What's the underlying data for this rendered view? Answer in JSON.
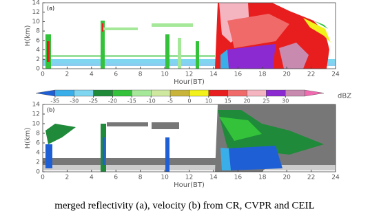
{
  "chart_data": [
    {
      "type": "time-height",
      "panel_label": "(a)",
      "xlabel": "Hour(BT)",
      "ylabel": "H(km)",
      "xlim": [
        0,
        24
      ],
      "xticks": [
        0,
        2,
        4,
        6,
        8,
        10,
        12,
        14,
        16,
        18,
        20,
        22,
        24
      ],
      "ylim": [
        0,
        14
      ],
      "yticks": [
        0,
        2,
        4,
        6,
        8,
        10,
        12,
        14
      ]
    },
    {
      "type": "colorbar",
      "unit": "dBZ",
      "ticks": [
        -35,
        -30,
        -25,
        -20,
        -15,
        -10,
        -5,
        0,
        10,
        15,
        20,
        25,
        30
      ],
      "colors": [
        "#1f5fd6",
        "#3aaee8",
        "#7ed6f0",
        "#1f8a3a",
        "#33c23a",
        "#a6e89a",
        "#cfe8a0",
        "#c8b43a",
        "#f2f21a",
        "#e81e1e",
        "#f06a6a",
        "#f5b5c0",
        "#8a2ad0",
        "#c98ab0",
        "#f06ab0"
      ]
    },
    {
      "type": "time-height",
      "panel_label": "(b)",
      "xlabel": "Hour(BT)",
      "ylabel": "H(km)",
      "xlim": [
        0,
        24
      ],
      "xticks": [
        0,
        2,
        4,
        6,
        8,
        10,
        12,
        14,
        16,
        18,
        20,
        22,
        24
      ],
      "ylim": [
        0,
        14
      ],
      "yticks": [
        0,
        2,
        4,
        6,
        8,
        10,
        12,
        14
      ]
    }
  ],
  "caption": "merged reflectivity (a), velocity (b)  from CR, CVPR and CEIL"
}
